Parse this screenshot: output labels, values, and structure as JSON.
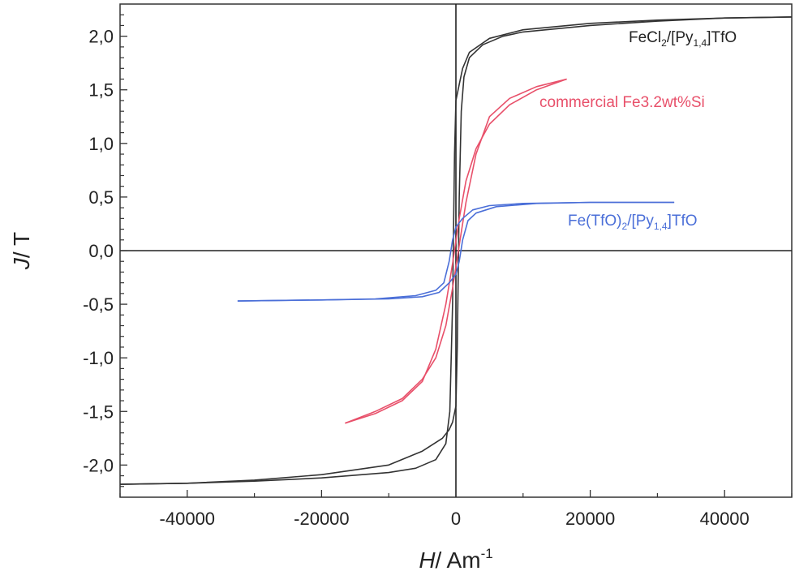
{
  "chart_data": {
    "type": "line",
    "title": "",
    "xlabel": {
      "symbol": "H",
      "unit": "/ Am",
      "exponent": "-1"
    },
    "ylabel": {
      "symbol": "J",
      "unit": "/ T"
    },
    "xlim": [
      -50000,
      50000
    ],
    "ylim": [
      -2.3,
      2.3
    ],
    "x_ticks": [
      {
        "value": -40000,
        "label": "-40000"
      },
      {
        "value": -20000,
        "label": "-20000"
      },
      {
        "value": 0,
        "label": "0"
      },
      {
        "value": 20000,
        "label": "20000"
      },
      {
        "value": 40000,
        "label": "40000"
      }
    ],
    "y_ticks": [
      {
        "value": 2.0,
        "label": "2,0"
      },
      {
        "value": 1.5,
        "label": "1,5"
      },
      {
        "value": 1.0,
        "label": "1,0"
      },
      {
        "value": 0.5,
        "label": "0,5"
      },
      {
        "value": 0.0,
        "label": "0,0"
      },
      {
        "value": -0.5,
        "label": "-0,5"
      },
      {
        "value": -1.0,
        "label": "-1,0"
      },
      {
        "value": -1.5,
        "label": "-1,5"
      },
      {
        "value": -2.0,
        "label": "-2,0"
      }
    ],
    "grid": false,
    "series": [
      {
        "name": "FeCl2/[Py1,4]TfO",
        "label_parts": {
          "a": "FeCl",
          "a_sub": "2",
          "b": "/[Py",
          "b_sub": "1,4",
          "c": "]TfO"
        },
        "color": "#333333",
        "descending": [
          [
            50000,
            2.18
          ],
          [
            40000,
            2.17
          ],
          [
            30000,
            2.15
          ],
          [
            20000,
            2.12
          ],
          [
            10000,
            2.06
          ],
          [
            5000,
            1.98
          ],
          [
            2000,
            1.85
          ],
          [
            1000,
            1.7
          ],
          [
            500,
            1.55
          ],
          [
            0,
            1.4
          ],
          [
            -200,
            0.9
          ],
          [
            -500,
            -0.5
          ],
          [
            -900,
            -1.5
          ],
          [
            -1500,
            -1.8
          ],
          [
            -3000,
            -1.95
          ],
          [
            -6000,
            -2.03
          ],
          [
            -10000,
            -2.07
          ],
          [
            -20000,
            -2.12
          ],
          [
            -30000,
            -2.15
          ],
          [
            -40000,
            -2.17
          ],
          [
            -50000,
            -2.18
          ]
        ],
        "ascending": [
          [
            -50000,
            -2.18
          ],
          [
            -40000,
            -2.17
          ],
          [
            -30000,
            -2.14
          ],
          [
            -20000,
            -2.09
          ],
          [
            -10000,
            -2.0
          ],
          [
            -5000,
            -1.87
          ],
          [
            -2000,
            -1.75
          ],
          [
            -1000,
            -1.67
          ],
          [
            -500,
            -1.6
          ],
          [
            0,
            -1.45
          ],
          [
            200,
            -0.9
          ],
          [
            500,
            0.5
          ],
          [
            800,
            1.3
          ],
          [
            1200,
            1.62
          ],
          [
            2000,
            1.8
          ],
          [
            4000,
            1.92
          ],
          [
            7000,
            2.0
          ],
          [
            10000,
            2.04
          ],
          [
            20000,
            2.1
          ],
          [
            30000,
            2.14
          ],
          [
            40000,
            2.17
          ],
          [
            50000,
            2.18
          ]
        ]
      },
      {
        "name": "commercial Fe3.2wt%Si",
        "color": "#e8506a",
        "descending": [
          [
            16500,
            1.6
          ],
          [
            12000,
            1.53
          ],
          [
            8000,
            1.42
          ],
          [
            5000,
            1.25
          ],
          [
            3000,
            0.9
          ],
          [
            1500,
            0.45
          ],
          [
            500,
            0.05
          ],
          [
            -500,
            -0.35
          ],
          [
            -1500,
            -0.7
          ],
          [
            -3000,
            -1.0
          ],
          [
            -5000,
            -1.2
          ],
          [
            -8000,
            -1.38
          ],
          [
            -12000,
            -1.5
          ],
          [
            -16500,
            -1.61
          ]
        ],
        "ascending": [
          [
            -16500,
            -1.61
          ],
          [
            -12000,
            -1.52
          ],
          [
            -8000,
            -1.4
          ],
          [
            -5000,
            -1.22
          ],
          [
            -3000,
            -0.92
          ],
          [
            -1500,
            -0.5
          ],
          [
            -500,
            -0.12
          ],
          [
            500,
            0.3
          ],
          [
            1500,
            0.65
          ],
          [
            3000,
            0.95
          ],
          [
            5000,
            1.18
          ],
          [
            8000,
            1.36
          ],
          [
            12000,
            1.5
          ],
          [
            16500,
            1.6
          ]
        ]
      },
      {
        "name": "Fe(TfO)2/[Py1,4]TfO",
        "label_parts": {
          "a": "Fe(TfO)",
          "a_sub": "2",
          "b": "/[Py",
          "b_sub": "1,4",
          "c": "]TfO"
        },
        "color": "#4b6fd8",
        "descending": [
          [
            32500,
            0.45
          ],
          [
            20000,
            0.45
          ],
          [
            10000,
            0.44
          ],
          [
            5000,
            0.42
          ],
          [
            2500,
            0.38
          ],
          [
            1000,
            0.3
          ],
          [
            0,
            0.22
          ],
          [
            -500,
            0.1
          ],
          [
            -1000,
            -0.1
          ],
          [
            -1800,
            -0.3
          ],
          [
            -3000,
            -0.37
          ],
          [
            -6000,
            -0.42
          ],
          [
            -12000,
            -0.45
          ],
          [
            -20000,
            -0.46
          ],
          [
            -32500,
            -0.47
          ]
        ],
        "ascending": [
          [
            -32500,
            -0.47
          ],
          [
            -20000,
            -0.46
          ],
          [
            -10000,
            -0.45
          ],
          [
            -5000,
            -0.43
          ],
          [
            -2500,
            -0.39
          ],
          [
            -1000,
            -0.3
          ],
          [
            0,
            -0.22
          ],
          [
            500,
            -0.1
          ],
          [
            1000,
            0.1
          ],
          [
            1800,
            0.28
          ],
          [
            3000,
            0.35
          ],
          [
            6000,
            0.41
          ],
          [
            12000,
            0.44
          ],
          [
            20000,
            0.45
          ],
          [
            32500,
            0.45
          ]
        ]
      }
    ]
  }
}
